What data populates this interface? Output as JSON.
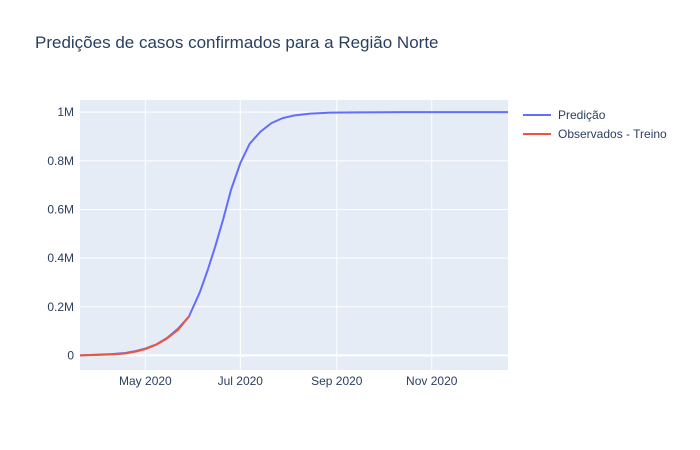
{
  "chart_data": {
    "type": "line",
    "title": "Predições de casos confirmados para a Região Norte",
    "xlabel": "",
    "ylabel": "",
    "x_axis_type": "date",
    "xlim": [
      "2020-03-20",
      "2020-12-20"
    ],
    "ylim": [
      -60000,
      1050000
    ],
    "x_ticks": [
      {
        "value": "2020-05-01",
        "label": "May 2020"
      },
      {
        "value": "2020-07-01",
        "label": "Jul 2020"
      },
      {
        "value": "2020-09-01",
        "label": "Sep 2020"
      },
      {
        "value": "2020-11-01",
        "label": "Nov 2020"
      }
    ],
    "y_ticks": [
      {
        "value": 0,
        "label": "0"
      },
      {
        "value": 200000,
        "label": "0.2M"
      },
      {
        "value": 400000,
        "label": "0.4M"
      },
      {
        "value": 600000,
        "label": "0.6M"
      },
      {
        "value": 800000,
        "label": "0.8M"
      },
      {
        "value": 1000000,
        "label": "1M"
      }
    ],
    "grid": true,
    "legend_position": "right",
    "colors": {
      "plot_bg": "#e5ecf6",
      "grid": "#ffffff",
      "text": "#2a3f5f"
    },
    "series": [
      {
        "name": "Predição",
        "color": "#636efa",
        "points": [
          [
            "2020-03-20",
            0
          ],
          [
            "2020-04-01",
            3000
          ],
          [
            "2020-04-10",
            6000
          ],
          [
            "2020-04-18",
            10000
          ],
          [
            "2020-04-25",
            18000
          ],
          [
            "2020-05-01",
            28000
          ],
          [
            "2020-05-08",
            45000
          ],
          [
            "2020-05-15",
            72000
          ],
          [
            "2020-05-22",
            110000
          ],
          [
            "2020-05-29",
            160000
          ],
          [
            "2020-06-05",
            260000
          ],
          [
            "2020-06-10",
            350000
          ],
          [
            "2020-06-15",
            450000
          ],
          [
            "2020-06-20",
            560000
          ],
          [
            "2020-06-25",
            680000
          ],
          [
            "2020-07-01",
            790000
          ],
          [
            "2020-07-07",
            870000
          ],
          [
            "2020-07-14",
            920000
          ],
          [
            "2020-07-21",
            955000
          ],
          [
            "2020-07-28",
            975000
          ],
          [
            "2020-08-05",
            987000
          ],
          [
            "2020-08-15",
            994000
          ],
          [
            "2020-08-28",
            998000
          ],
          [
            "2020-09-15",
            999000
          ],
          [
            "2020-10-15",
            1000000
          ],
          [
            "2020-11-15",
            1000000
          ],
          [
            "2020-12-20",
            1000000
          ]
        ]
      },
      {
        "name": "Observados - Treino",
        "color": "#ef553b",
        "points": [
          [
            "2020-03-20",
            0
          ],
          [
            "2020-04-01",
            2000
          ],
          [
            "2020-04-10",
            4000
          ],
          [
            "2020-04-18",
            8000
          ],
          [
            "2020-04-25",
            16000
          ],
          [
            "2020-05-01",
            26000
          ],
          [
            "2020-05-08",
            44000
          ],
          [
            "2020-05-15",
            70000
          ],
          [
            "2020-05-22",
            105000
          ],
          [
            "2020-05-29",
            160000
          ]
        ]
      }
    ]
  }
}
